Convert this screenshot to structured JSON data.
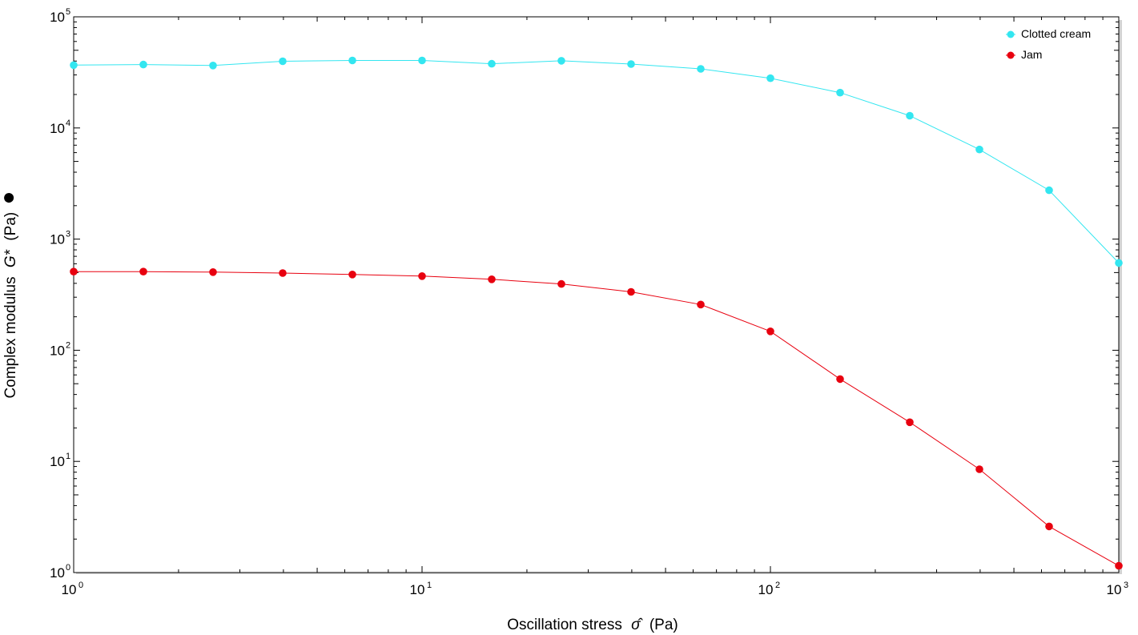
{
  "chart_data": {
    "type": "line",
    "title": "",
    "xscale": "log",
    "yscale": "log",
    "xlim": [
      1,
      1000
    ],
    "ylim": [
      1,
      100000
    ],
    "x_tick_values": [
      1,
      10,
      100,
      1000
    ],
    "y_tick_values": [
      1,
      10,
      100,
      1000,
      10000,
      100000
    ],
    "x_tick_labels": [
      {
        "base": "10",
        "exp": "0"
      },
      {
        "base": "10",
        "exp": "1"
      },
      {
        "base": "10",
        "exp": "2"
      },
      {
        "base": "10",
        "exp": "3"
      }
    ],
    "y_tick_labels": [
      {
        "base": "10",
        "exp": "0"
      },
      {
        "base": "10",
        "exp": "1"
      },
      {
        "base": "10",
        "exp": "2"
      },
      {
        "base": "10",
        "exp": "3"
      },
      {
        "base": "10",
        "exp": "4"
      },
      {
        "base": "10",
        "exp": "5"
      }
    ],
    "xlabel": {
      "prefix": "Oscillation stress",
      "symbol": "σ̂",
      "unit": "(Pa)"
    },
    "ylabel": {
      "prefix": "Complex modulus",
      "symbol": "G*",
      "unit": "(Pa)",
      "marker": "●"
    },
    "legend_position": "top-right",
    "grid": false,
    "x": [
      1,
      1.585,
      2.512,
      3.981,
      6.31,
      10,
      15.85,
      25.12,
      39.81,
      63.1,
      100,
      158.5,
      251.2,
      398.1,
      631,
      1000
    ],
    "series": [
      {
        "name": "Clotted cream",
        "color": "#33e6f0",
        "values": [
          36800,
          37200,
          36500,
          39800,
          40500,
          40500,
          37800,
          40200,
          37600,
          34000,
          28000,
          20800,
          12900,
          6400,
          2750,
          610
        ]
      },
      {
        "name": "Jam",
        "color": "#e8000f",
        "values": [
          510,
          510,
          505,
          495,
          480,
          465,
          435,
          395,
          335,
          258,
          148,
          55,
          22.5,
          8.5,
          2.6,
          1.15
        ]
      }
    ]
  }
}
